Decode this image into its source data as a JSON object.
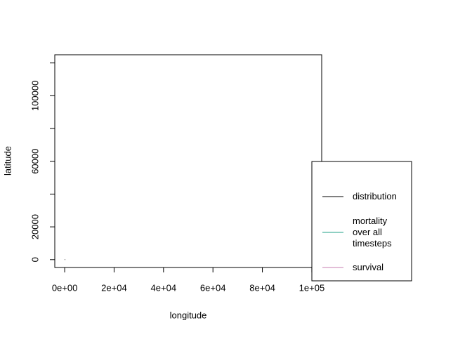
{
  "chart_data": {
    "type": "line",
    "xlabel": "longitude",
    "ylabel": "latitude",
    "xlim": [
      -4000,
      104000
    ],
    "ylim": [
      -4800,
      125000
    ],
    "xticks": [
      {
        "value": 0,
        "label": "0e+00"
      },
      {
        "value": 20000,
        "label": "2e+04"
      },
      {
        "value": 40000,
        "label": "4e+04"
      },
      {
        "value": 60000,
        "label": "6e+04"
      },
      {
        "value": 80000,
        "label": "8e+04"
      },
      {
        "value": 100000,
        "label": "1e+05"
      }
    ],
    "yticks": [
      0,
      20000,
      60000,
      100000
    ],
    "yminor_ticks": [
      40000,
      80000,
      120000
    ],
    "legend": "bottom right outside",
    "series": [
      {
        "name": "distribution",
        "color": "#000000",
        "x": [
          0
        ],
        "values": [
          0
        ]
      },
      {
        "name": "mortality\nover all\ntimesteps",
        "color": "#1fa187",
        "x": [],
        "values": []
      },
      {
        "name": "survival",
        "color": "#c77cb0",
        "x": [],
        "values": []
      }
    ]
  }
}
